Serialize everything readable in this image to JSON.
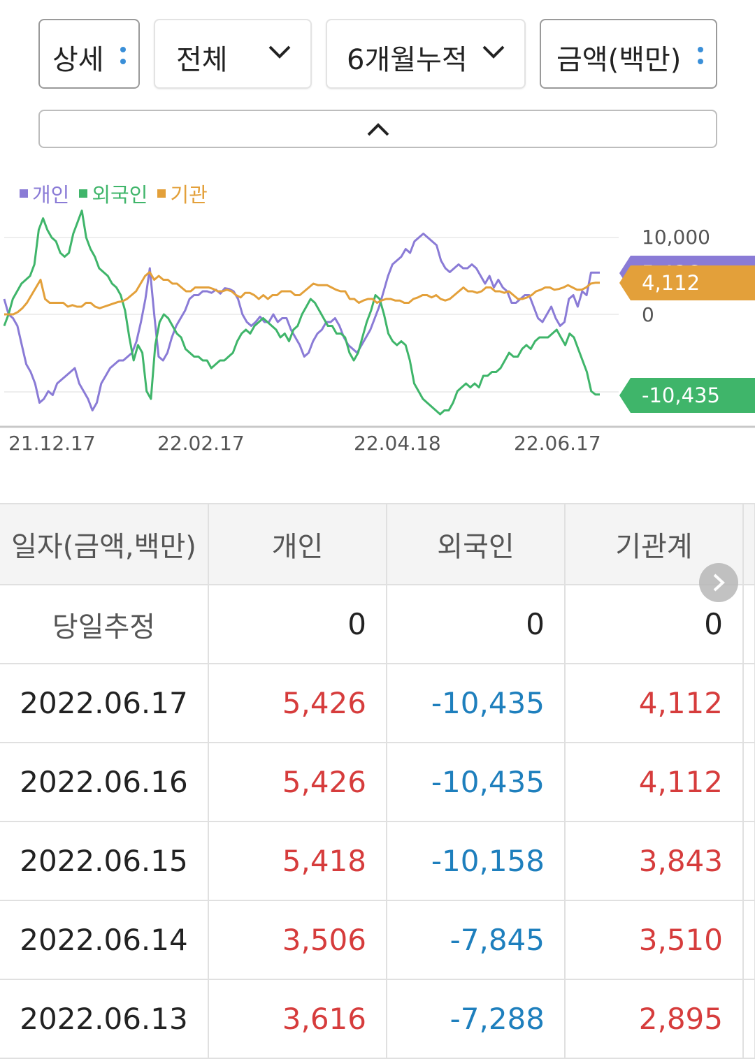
{
  "controls": {
    "detail": "상세",
    "scope": "전체",
    "period": "6개월누적",
    "unit": "금액(백만)"
  },
  "legend": [
    {
      "label": "개인",
      "color": "#8a7bd6"
    },
    {
      "label": "외국인",
      "color": "#3fb56a"
    },
    {
      "label": "기관",
      "color": "#e3a03a"
    }
  ],
  "chart_data": {
    "type": "line",
    "x_ticks": [
      "21.12.17",
      "22.02.17",
      "22.04.18",
      "22.06.17"
    ],
    "y_ticks": [
      "10,000",
      "0"
    ],
    "end_labels": [
      {
        "series": "개인",
        "text": "5,426",
        "color": "#8a7bd6"
      },
      {
        "series": "기관",
        "text": "4,112",
        "color": "#e3a03a"
      },
      {
        "series": "외국인",
        "text": "-10,435",
        "color": "#3fb56a"
      }
    ],
    "series": [
      {
        "name": "개인",
        "color": "#8a7bd6",
        "values": [
          2000,
          0,
          -500,
          -1500,
          -4000,
          -6500,
          -7500,
          -9000,
          -11500,
          -11000,
          -10000,
          -10500,
          -9000,
          -8500,
          -8000,
          -7500,
          -7000,
          -9000,
          -10000,
          -11000,
          -12500,
          -11500,
          -9000,
          -8000,
          -7000,
          -6500,
          -6000,
          -6000,
          -5500,
          -5000,
          -3500,
          -1000,
          2000,
          6000,
          0,
          -5500,
          -6000,
          -5000,
          -3000,
          -1500,
          -500,
          500,
          2000,
          2500,
          2500,
          3000,
          3000,
          2800,
          3200,
          2700,
          3400,
          3300,
          3000,
          2000,
          0,
          -1000,
          -1500,
          -1000,
          -300,
          -1000,
          -1000,
          0,
          -1000,
          -500,
          -500,
          -2000,
          -3000,
          -4000,
          -5500,
          -5000,
          -3500,
          -2500,
          -2000,
          -1000,
          -1000,
          -500,
          -1500,
          -3000,
          -4000,
          -4500,
          -5000,
          -4000,
          -3000,
          -2000,
          -500,
          1000,
          3000,
          5000,
          6500,
          7000,
          7500,
          8500,
          8000,
          9500,
          10000,
          10500,
          10000,
          9500,
          9000,
          7000,
          6000,
          5500,
          6000,
          6500,
          6000,
          6000,
          6500,
          6000,
          5000,
          4000,
          5000,
          3500,
          4500,
          3500,
          3000,
          1500,
          1500,
          2000,
          2500,
          2500,
          1000,
          -500,
          -1000,
          0,
          1000,
          -500,
          -1500,
          -1000,
          2000,
          2500,
          1000,
          3000,
          2500,
          5426,
          5426,
          5426
        ]
      },
      {
        "name": "외국인",
        "color": "#3fb56a",
        "values": [
          -1500,
          0,
          2000,
          3000,
          4000,
          4500,
          5000,
          6500,
          11000,
          12500,
          11000,
          10000,
          9500,
          8000,
          7500,
          8000,
          10500,
          12000,
          13500,
          10000,
          8500,
          7500,
          6000,
          5500,
          5000,
          4000,
          3500,
          2500,
          500,
          -3000,
          -6000,
          -4000,
          -5000,
          -10000,
          -11000,
          -4000,
          -1000,
          0,
          -500,
          -1500,
          -2500,
          -3000,
          -4500,
          -5000,
          -5500,
          -5500,
          -6000,
          -6000,
          -7000,
          -6500,
          -6000,
          -6000,
          -5500,
          -5000,
          -3500,
          -2500,
          -2000,
          -2500,
          -1500,
          -1000,
          -500,
          -1000,
          -1500,
          -2000,
          -3000,
          -2500,
          -3500,
          -2000,
          -1500,
          0,
          1000,
          2000,
          1500,
          500,
          -500,
          -1500,
          -1500,
          -2500,
          -2500,
          -3000,
          -5000,
          -6000,
          -5000,
          -3000,
          -1000,
          500,
          2500,
          2000,
          0,
          -2500,
          -3500,
          -4000,
          -3500,
          -4000,
          -6000,
          -9000,
          -10000,
          -11000,
          -11500,
          -12000,
          -12500,
          -13000,
          -12500,
          -12500,
          -11500,
          -10000,
          -9500,
          -9000,
          -9500,
          -9000,
          -9500,
          -8000,
          -8000,
          -7500,
          -7500,
          -7000,
          -6000,
          -5000,
          -5500,
          -5500,
          -4500,
          -4000,
          -4500,
          -3500,
          -3000,
          -3000,
          -3000,
          -2500,
          -2000,
          -3000,
          -4000,
          -2500,
          -3000,
          -4500,
          -6000,
          -7500,
          -10000,
          -10435,
          -10435
        ]
      },
      {
        "name": "기관",
        "color": "#e3a03a",
        "values": [
          0,
          0,
          0,
          300,
          800,
          1500,
          2500,
          3500,
          4500,
          2000,
          1500,
          1500,
          1500,
          1500,
          1000,
          1200,
          1000,
          1000,
          1500,
          1500,
          1000,
          800,
          1000,
          1200,
          1400,
          1600,
          1700,
          2000,
          2500,
          3000,
          4000,
          5000,
          5500,
          4500,
          5000,
          4500,
          4500,
          4000,
          4000,
          3500,
          3000,
          3000,
          3500,
          3500,
          3500,
          3500,
          3300,
          3000,
          3000,
          3200,
          3000,
          2500,
          2200,
          2800,
          2800,
          2500,
          2000,
          2500,
          2000,
          2500,
          2500,
          3000,
          3000,
          3000,
          2500,
          2500,
          3000,
          3500,
          4000,
          3800,
          3800,
          3800,
          3500,
          3200,
          3000,
          3000,
          2000,
          2000,
          1500,
          1800,
          2000,
          2000,
          1500,
          1800,
          2000,
          2000,
          1800,
          1800,
          1500,
          1500,
          2000,
          2200,
          2500,
          2500,
          2200,
          2500,
          2000,
          1800,
          2000,
          2500,
          3000,
          3500,
          3000,
          3000,
          2800,
          3000,
          3500,
          3500,
          3000,
          3000,
          2800,
          3000,
          2500,
          2000,
          2000,
          2200,
          2500,
          3000,
          3200,
          3500,
          3500,
          3200,
          3300,
          3500,
          3800,
          3500,
          3200,
          3200,
          3500,
          4000,
          4112,
          4112
        ]
      }
    ]
  },
  "table": {
    "headers": [
      "일자(금액,백만)",
      "개인",
      "외국인",
      "기관계"
    ],
    "today_row": {
      "date": "당일추정",
      "individual": "0",
      "foreign": "0",
      "institution": "0"
    },
    "rows": [
      {
        "date": "2022.06.17",
        "individual": "5,426",
        "foreign": "-10,435",
        "institution": "4,112"
      },
      {
        "date": "2022.06.16",
        "individual": "5,426",
        "foreign": "-10,435",
        "institution": "4,112"
      },
      {
        "date": "2022.06.15",
        "individual": "5,418",
        "foreign": "-10,158",
        "institution": "3,843"
      },
      {
        "date": "2022.06.14",
        "individual": "3,506",
        "foreign": "-7,845",
        "institution": "3,510"
      },
      {
        "date": "2022.06.13",
        "individual": "3,616",
        "foreign": "-7,288",
        "institution": "2,895"
      }
    ]
  }
}
